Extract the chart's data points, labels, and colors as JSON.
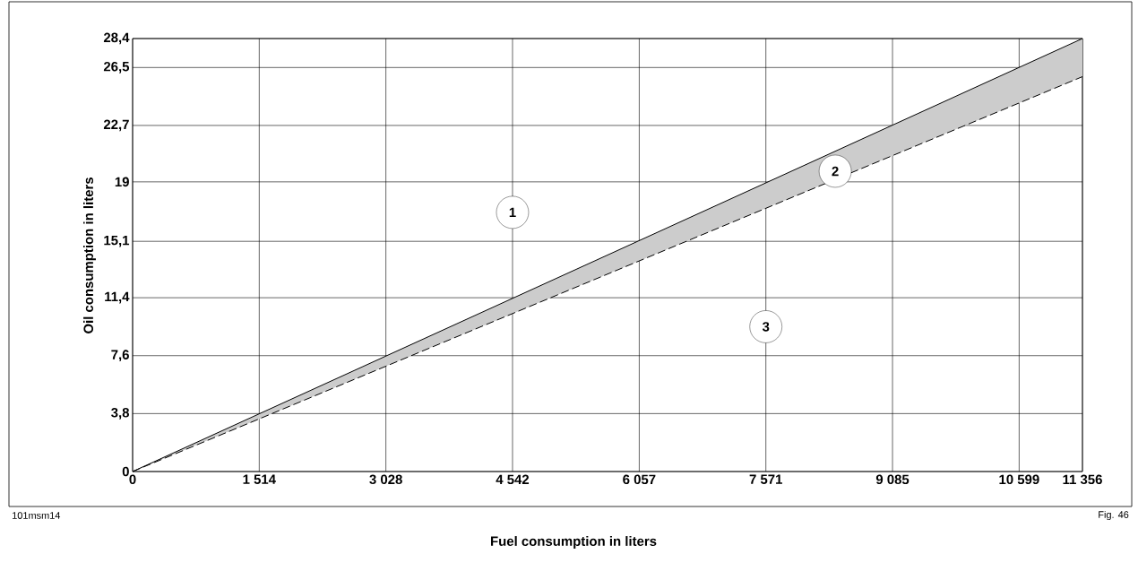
{
  "chart_data": {
    "type": "line",
    "xlabel": "Fuel consumption in liters",
    "ylabel": "Oil consumption in liters",
    "x": [
      0,
      11356
    ],
    "series": [
      {
        "color": "#000000",
        "line_style": "solid",
        "values": [
          0,
          28.4
        ],
        "lower": [
          0,
          25.9
        ],
        "upper": [
          0,
          28.4
        ]
      },
      {
        "color": "#000000",
        "line_style": "dashed",
        "values": [
          0,
          25.9
        ]
      }
    ],
    "xlim": [
      0,
      11356
    ],
    "ylim": [
      0,
      28.4
    ],
    "xticks": [
      0,
      {
        "value": 1514,
        "label": "1 514"
      },
      {
        "value": 3028,
        "label": "3 028"
      },
      {
        "value": 4542,
        "label": "4 542"
      },
      {
        "value": 6057,
        "label": "6 057"
      },
      {
        "value": 7571,
        "label": "7 571"
      },
      {
        "value": 9085,
        "label": "9 085"
      },
      {
        "value": 10599,
        "label": "10 599"
      },
      {
        "value": 11356,
        "label": "11 356"
      }
    ],
    "yticks": [
      0,
      {
        "value": 3.8,
        "label": "3,8"
      },
      {
        "value": 7.6,
        "label": "7,6"
      },
      {
        "value": 11.4,
        "label": "11,4"
      },
      {
        "value": 15.1,
        "label": "15,1"
      },
      19,
      {
        "value": 22.7,
        "label": "22,7"
      },
      {
        "value": 26.5,
        "label": "26,5"
      },
      {
        "value": 28.4,
        "label": "28,4"
      }
    ],
    "grid": true,
    "marker": "none",
    "annotations": [
      {
        "text": "1",
        "x": 4542,
        "y": 17
      },
      {
        "text": "2",
        "x": 8400,
        "y": 19.7
      },
      {
        "text": "3",
        "x": 7571,
        "y": 9.5
      },
      "101msm14",
      "Fig. 46"
    ]
  }
}
